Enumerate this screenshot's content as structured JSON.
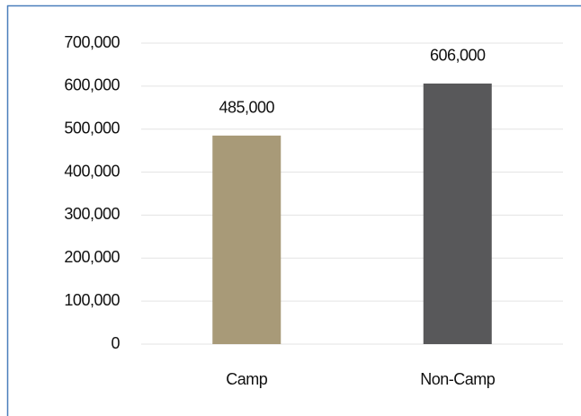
{
  "chart_data": {
    "type": "bar",
    "categories": [
      "Camp",
      "Non-Camp"
    ],
    "values": [
      485000,
      606000
    ],
    "value_labels": [
      "485,000",
      "606,000"
    ],
    "colors": [
      "#a89a78",
      "#58585a"
    ],
    "ylim": [
      0,
      700000
    ],
    "yticks": [
      0,
      {
        "value": 100000,
        "label": "100,000"
      },
      {
        "value": 200000,
        "label": "200,000"
      },
      {
        "value": 300000,
        "label": "300,000"
      },
      {
        "value": 400000,
        "label": "400,000"
      },
      {
        "value": 500000,
        "label": "500,000"
      },
      {
        "value": 600000,
        "label": "600,000"
      },
      {
        "value": 700000,
        "label": "700,000"
      }
    ],
    "grid": true
  }
}
